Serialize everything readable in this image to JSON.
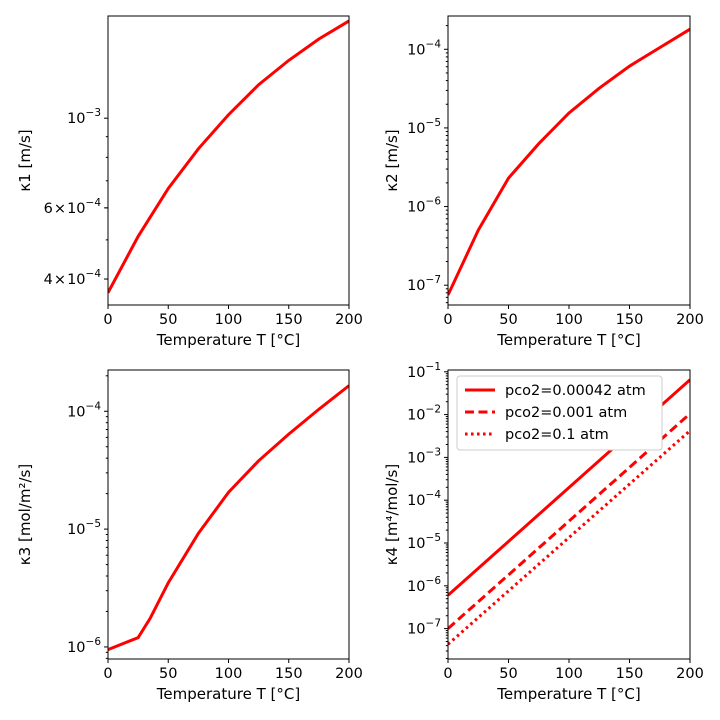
{
  "chart_data": [
    {
      "type": "line",
      "xlabel": "Temperature T [°C]",
      "ylabel": "κ1 [m/s]",
      "xlim": [
        0,
        200
      ],
      "ylim": [
        0.000345,
        0.00179
      ],
      "yscale": "log",
      "x_ticks": [
        0,
        50,
        100,
        150,
        200
      ],
      "y_ticks": [
        {
          "value": 0.0004,
          "mant": "4",
          "op": "×",
          "base": "10",
          "exp": "−4"
        },
        {
          "value": 0.0006,
          "mant": "6",
          "op": "×",
          "base": "10",
          "exp": "−4"
        },
        {
          "value": 0.001,
          "mant": "",
          "op": "",
          "base": "10",
          "exp": "−3"
        }
      ],
      "series": [
        {
          "color": "#ff0000",
          "dash": "solid",
          "x": [
            0,
            25,
            50,
            75,
            100,
            125,
            150,
            175,
            200
          ],
          "y": [
            0.00037,
            0.00051,
            0.00067,
            0.00084,
            0.00102,
            0.00121,
            0.00139,
            0.00157,
            0.00174
          ]
        }
      ]
    },
    {
      "type": "line",
      "xlabel": "Temperature T [°C]",
      "ylabel": "κ2 [m/s]",
      "xlim": [
        0,
        200
      ],
      "ylim": [
        5.6e-08,
        0.000265
      ],
      "yscale": "log",
      "x_ticks": [
        0,
        50,
        100,
        150,
        200
      ],
      "y_ticks": [
        {
          "value": 1e-07,
          "mant": "",
          "op": "",
          "base": "10",
          "exp": "−7"
        },
        {
          "value": 1e-06,
          "mant": "",
          "op": "",
          "base": "10",
          "exp": "−6"
        },
        {
          "value": 1e-05,
          "mant": "",
          "op": "",
          "base": "10",
          "exp": "−5"
        },
        {
          "value": 0.0001,
          "mant": "",
          "op": "",
          "base": "10",
          "exp": "−4"
        }
      ],
      "series": [
        {
          "color": "#ff0000",
          "dash": "solid",
          "x": [
            0,
            25,
            50,
            75,
            100,
            125,
            150,
            175,
            200
          ],
          "y": [
            7.5e-08,
            5e-07,
            2.3e-06,
            6.3e-06,
            1.55e-05,
            3.2e-05,
            6.1e-05,
            0.000105,
            0.00018
          ]
        }
      ]
    },
    {
      "type": "line",
      "xlabel": "Temperature T [°C]",
      "ylabel": "κ3 [mol/m²/s]",
      "xlim": [
        0,
        200
      ],
      "ylim": [
        7.9e-07,
        0.000224
      ],
      "yscale": "log",
      "x_ticks": [
        0,
        50,
        100,
        150,
        200
      ],
      "y_ticks": [
        {
          "value": 1e-06,
          "mant": "",
          "op": "",
          "base": "10",
          "exp": "−6"
        },
        {
          "value": 1e-05,
          "mant": "",
          "op": "",
          "base": "10",
          "exp": "−5"
        },
        {
          "value": 0.0001,
          "mant": "",
          "op": "",
          "base": "10",
          "exp": "−4"
        }
      ],
      "series": [
        {
          "color": "#ff0000",
          "dash": "solid",
          "x": [
            0,
            25,
            35,
            50,
            75,
            100,
            125,
            150,
            175,
            200
          ],
          "y": [
            9.5e-07,
            1.2e-06,
            1.75e-06,
            3.5e-06,
            9.2e-06,
            2.05e-05,
            3.8e-05,
            6.4e-05,
            0.000104,
            0.000165
          ]
        }
      ]
    },
    {
      "type": "line",
      "xlabel": "Temperature T [°C]",
      "ylabel": "κ4 [m⁴/mol/s]",
      "xlim": [
        0,
        200
      ],
      "ylim": [
        1.95e-08,
        0.11
      ],
      "yscale": "log",
      "legend_position": "top-left",
      "x_ticks": [
        0,
        50,
        100,
        150,
        200
      ],
      "y_ticks": [
        {
          "value": 1e-07,
          "mant": "",
          "op": "",
          "base": "10",
          "exp": "−7"
        },
        {
          "value": 1e-06,
          "mant": "",
          "op": "",
          "base": "10",
          "exp": "−6"
        },
        {
          "value": 1e-05,
          "mant": "",
          "op": "",
          "base": "10",
          "exp": "−5"
        },
        {
          "value": 0.0001,
          "mant": "",
          "op": "",
          "base": "10",
          "exp": "−4"
        },
        {
          "value": 0.001,
          "mant": "",
          "op": "",
          "base": "10",
          "exp": "−3"
        },
        {
          "value": 0.01,
          "mant": "",
          "op": "",
          "base": "10",
          "exp": "−2"
        },
        {
          "value": 0.1,
          "mant": "",
          "op": "",
          "base": "10",
          "exp": "−1"
        }
      ],
      "series": [
        {
          "name": "pco2=0.00042 atm",
          "color": "#ff0000",
          "dash": "solid",
          "x": [
            0,
            200
          ],
          "y": [
            6e-07,
            0.065
          ]
        },
        {
          "name": "pco2=0.001 atm",
          "color": "#ff0000",
          "dash": "dashed",
          "x": [
            0,
            200
          ],
          "y": [
            1e-07,
            0.0105
          ]
        },
        {
          "name": "pco2=0.1 atm",
          "color": "#ff0000",
          "dash": "dotted",
          "x": [
            0,
            200
          ],
          "y": [
            4.3e-08,
            0.0042
          ]
        }
      ]
    }
  ]
}
